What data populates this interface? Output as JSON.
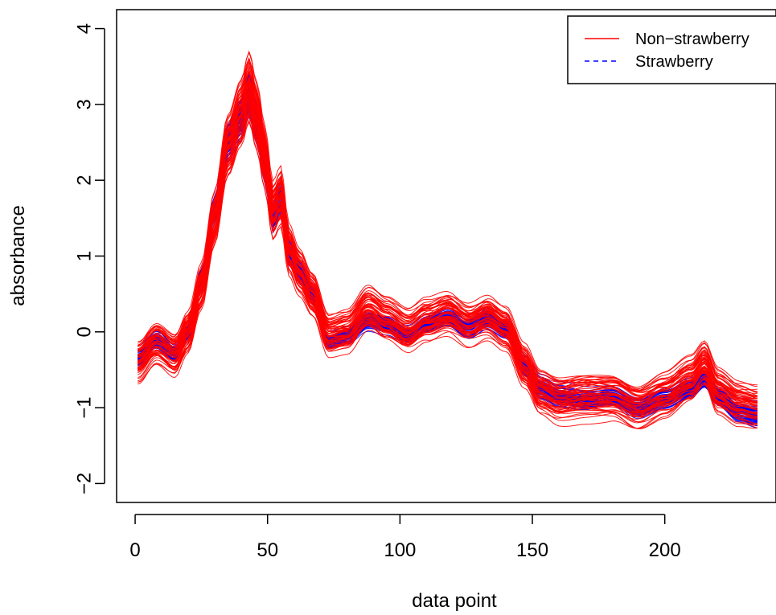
{
  "chart_data": {
    "type": "line",
    "title": "",
    "xlabel": "data point",
    "ylabel": "absorbance",
    "xlim": [
      -7,
      242
    ],
    "ylim": [
      -2.25,
      4.25
    ],
    "x_ticks": [
      0,
      50,
      100,
      150,
      200
    ],
    "y_ticks": [
      -2,
      -1,
      0,
      1,
      2,
      3,
      4
    ],
    "x_tick_labels": [
      "0",
      "50",
      "100",
      "150",
      "200"
    ],
    "y_tick_labels": [
      "−2",
      "−1",
      "0",
      "1",
      "2",
      "3",
      "4"
    ],
    "grid": false,
    "legend_position": "top-right",
    "legend": [
      {
        "label": "Non−strawberry",
        "color": "#ff0000",
        "line_style": "solid"
      },
      {
        "label": "Strawberry",
        "color": "#0000ff",
        "line_style": "dashed"
      }
    ],
    "x_range": [
      1,
      235
    ],
    "series": [
      {
        "group": "Strawberry",
        "color": "#0000ff",
        "profile": [
          [
            1,
            -0.35
          ],
          [
            8,
            -0.1
          ],
          [
            15,
            -0.28
          ],
          [
            20,
            0.0
          ],
          [
            25,
            0.7
          ],
          [
            30,
            1.6
          ],
          [
            35,
            2.5
          ],
          [
            40,
            2.8
          ],
          [
            43,
            3.15
          ],
          [
            46,
            2.75
          ],
          [
            49,
            2.2
          ],
          [
            52,
            1.5
          ],
          [
            55,
            1.75
          ],
          [
            58,
            1.05
          ],
          [
            62,
            0.8
          ],
          [
            67,
            0.5
          ],
          [
            73,
            -0.12
          ],
          [
            80,
            -0.05
          ],
          [
            88,
            0.15
          ],
          [
            95,
            0.1
          ],
          [
            103,
            -0.05
          ],
          [
            110,
            0.1
          ],
          [
            118,
            0.2
          ],
          [
            126,
            0.05
          ],
          [
            133,
            0.18
          ],
          [
            140,
            0.05
          ],
          [
            147,
            -0.45
          ],
          [
            153,
            -0.75
          ],
          [
            160,
            -0.85
          ],
          [
            170,
            -0.9
          ],
          [
            180,
            -0.85
          ],
          [
            190,
            -1.0
          ],
          [
            200,
            -0.88
          ],
          [
            210,
            -0.75
          ],
          [
            215,
            -0.62
          ],
          [
            220,
            -0.85
          ],
          [
            228,
            -1.05
          ],
          [
            235,
            -1.1
          ]
        ],
        "curve_count": 60,
        "spread": 0.1
      },
      {
        "group": "Non-strawberry",
        "color": "#ff0000",
        "profile": [
          [
            1,
            -0.4
          ],
          [
            8,
            -0.15
          ],
          [
            15,
            -0.3
          ],
          [
            20,
            0.0
          ],
          [
            25,
            0.6
          ],
          [
            30,
            1.5
          ],
          [
            35,
            2.45
          ],
          [
            40,
            2.9
          ],
          [
            43,
            3.25
          ],
          [
            46,
            2.85
          ],
          [
            49,
            2.3
          ],
          [
            52,
            1.6
          ],
          [
            55,
            1.8
          ],
          [
            58,
            1.1
          ],
          [
            62,
            0.8
          ],
          [
            67,
            0.5
          ],
          [
            73,
            -0.05
          ],
          [
            80,
            0.0
          ],
          [
            88,
            0.3
          ],
          [
            95,
            0.15
          ],
          [
            103,
            0.0
          ],
          [
            110,
            0.15
          ],
          [
            118,
            0.25
          ],
          [
            126,
            0.1
          ],
          [
            133,
            0.2
          ],
          [
            140,
            0.05
          ],
          [
            147,
            -0.45
          ],
          [
            153,
            -0.8
          ],
          [
            160,
            -0.9
          ],
          [
            170,
            -0.85
          ],
          [
            180,
            -0.85
          ],
          [
            190,
            -1.0
          ],
          [
            200,
            -0.85
          ],
          [
            210,
            -0.65
          ],
          [
            215,
            -0.45
          ],
          [
            220,
            -0.8
          ],
          [
            228,
            -0.95
          ],
          [
            235,
            -1.0
          ]
        ],
        "curve_count": 60,
        "spread": 0.22
      }
    ]
  }
}
